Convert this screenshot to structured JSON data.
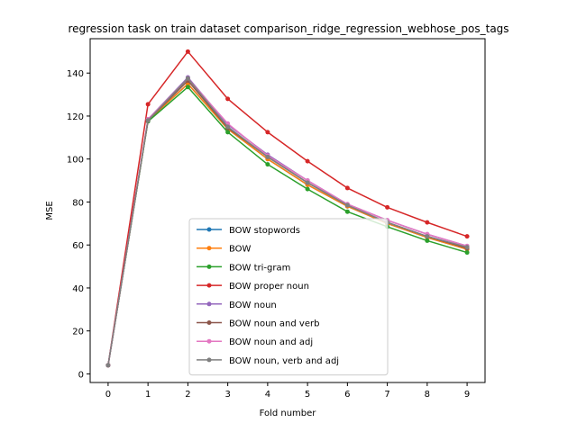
{
  "chart_data": {
    "type": "line",
    "title": "regression task on train dataset comparison_ridge_regression_webhose_pos_tags",
    "xlabel": "Fold number",
    "ylabel": "MSE",
    "x": [
      0,
      1,
      2,
      3,
      4,
      5,
      6,
      7,
      8,
      9
    ],
    "xlim": [
      -0.45,
      9.45
    ],
    "ylim": [
      -4,
      156
    ],
    "xticks": [
      0,
      1,
      2,
      3,
      4,
      5,
      6,
      7,
      8,
      9
    ],
    "yticks": [
      0,
      20,
      40,
      60,
      80,
      100,
      120,
      140
    ],
    "grid": false,
    "legend_position": "lower center",
    "series": [
      {
        "name": "BOW stopwords",
        "color": "#1f77b4",
        "values": [
          4,
          118,
          135,
          114,
          100,
          88,
          78,
          70,
          63.5,
          58
        ]
      },
      {
        "name": "BOW",
        "color": "#ff7f0e",
        "values": [
          4,
          118,
          135,
          114,
          100,
          88,
          78,
          70,
          63.5,
          58
        ]
      },
      {
        "name": "BOW tri-gram",
        "color": "#2ca02c",
        "values": [
          4,
          117.5,
          133.5,
          112.5,
          97.5,
          86,
          75.5,
          68.5,
          62,
          56.5
        ]
      },
      {
        "name": "BOW proper noun",
        "color": "#d62728",
        "values": [
          4,
          125.5,
          150,
          128,
          112.5,
          99,
          86.5,
          77.5,
          70.5,
          64
        ]
      },
      {
        "name": "BOW noun",
        "color": "#9467bd",
        "values": [
          4,
          118.5,
          138,
          116,
          102,
          90,
          79,
          71.5,
          65,
          59.5
        ]
      },
      {
        "name": "BOW noun and verb",
        "color": "#8c564b",
        "values": [
          4,
          118,
          136.5,
          114.5,
          101,
          89,
          78.5,
          70.5,
          64,
          58.5
        ]
      },
      {
        "name": "BOW noun and adj",
        "color": "#e377c2",
        "values": [
          4,
          118.5,
          137.5,
          116.5,
          101.5,
          90,
          79,
          71.5,
          65,
          59.5
        ]
      },
      {
        "name": "BOW noun, verb and adj",
        "color": "#7f7f7f",
        "values": [
          4,
          118,
          137.5,
          115,
          101,
          89,
          78.5,
          70.5,
          64,
          59
        ]
      }
    ]
  }
}
